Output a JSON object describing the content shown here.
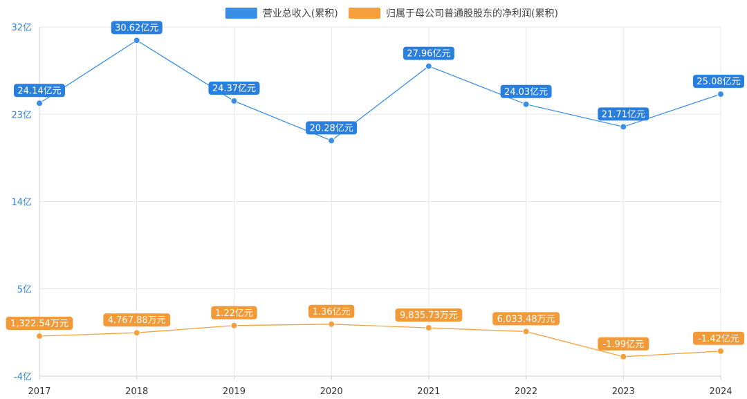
{
  "chart_data": {
    "type": "line",
    "categories": [
      "2017",
      "2018",
      "2019",
      "2020",
      "2021",
      "2022",
      "2023",
      "2024"
    ],
    "series": [
      {
        "name": "营业总收入(累积)",
        "color": "#3a8ee6",
        "label_color": "#2b7fdc",
        "unit": "亿元",
        "values": [
          24.14,
          30.62,
          24.37,
          20.28,
          27.96,
          24.03,
          21.71,
          25.08
        ],
        "data_labels": [
          "24.14亿元",
          "30.62亿元",
          "24.37亿元",
          "20.28亿元",
          "27.96亿元",
          "24.03亿元",
          "21.71亿元",
          "25.08亿元"
        ]
      },
      {
        "name": "归属于母公司普通股股东的净利润(累积)",
        "color": "#f5a03c",
        "label_color": "#f39a38",
        "unit": "亿元",
        "values": [
          0.1323,
          0.4768,
          1.22,
          1.36,
          0.9836,
          0.6033,
          -1.99,
          -1.42
        ],
        "data_labels": [
          "1,322.54万元",
          "4,767.88万元",
          "1.22亿元",
          "1.36亿元",
          "9,835.73万元",
          "6,033.48万元",
          "-1.99亿元",
          "-1.42亿元"
        ]
      }
    ],
    "y_ticks": [
      -4,
      5,
      14,
      23,
      32
    ],
    "y_tick_labels": [
      "-4亿",
      "5亿",
      "14亿",
      "23亿",
      "32亿"
    ],
    "ylim": [
      -4,
      32
    ],
    "y_tick_color": "#2b7fdc",
    "grid": true,
    "legend": "top-center",
    "xlabel": "",
    "ylabel": "",
    "title": ""
  }
}
